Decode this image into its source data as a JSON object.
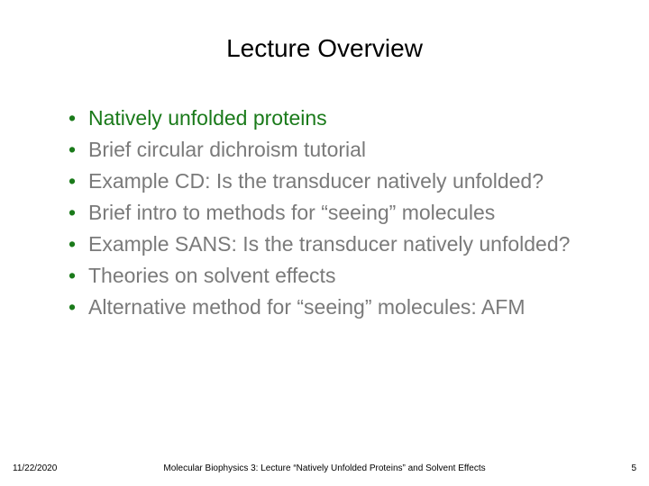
{
  "title": "Lecture Overview",
  "title_color": "#000000",
  "title_fontsize": 28,
  "bullet_marker_color": "#1a7a1a",
  "highlight_color": "#1a7a1a",
  "normal_color": "#7a7a7a",
  "bullet_fontsize": 23,
  "bullets": [
    {
      "text": "Natively unfolded proteins",
      "highlight": true
    },
    {
      "text": "Brief circular dichroism tutorial",
      "highlight": false
    },
    {
      "text": "Example CD: Is the transducer natively unfolded?",
      "highlight": false
    },
    {
      "text": "Brief intro to methods for “seeing” molecules",
      "highlight": false
    },
    {
      "text": "Example SANS: Is the transducer natively unfolded?",
      "highlight": false
    },
    {
      "text": "Theories on solvent effects",
      "highlight": false
    },
    {
      "text": "Alternative method for “seeing” molecules: AFM",
      "highlight": false
    }
  ],
  "footer": {
    "date": "11/22/2020",
    "lecture_title": "Molecular Biophysics 3: Lecture “Natively Unfolded Proteins” and Solvent Effects",
    "slide_number": "5"
  },
  "footer_fontsize": 10,
  "footer_color": "#000000",
  "background_color": "#ffffff",
  "slide_width": 720,
  "slide_height": 540
}
